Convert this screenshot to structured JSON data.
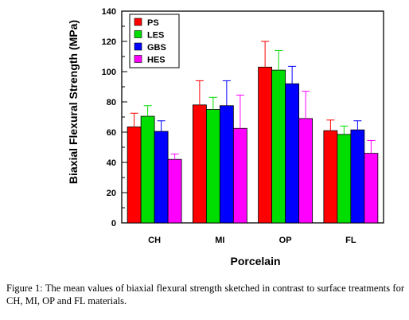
{
  "chart_data": {
    "type": "bar",
    "ylabel": "Biaxial Flexural Strength (MPa)",
    "xlabel": "Porcelain",
    "ylim": [
      0,
      140
    ],
    "yticks": [
      0,
      20,
      40,
      60,
      80,
      100,
      120,
      140
    ],
    "categories": [
      "CH",
      "MI",
      "OP",
      "FL"
    ],
    "legend_position": "top-left",
    "grid": false,
    "series": [
      {
        "name": "PS",
        "color": "#ff0000",
        "values": [
          63.5,
          78,
          103,
          61
        ],
        "errors": [
          9,
          16,
          17,
          7
        ]
      },
      {
        "name": "LES",
        "color": "#00dd00",
        "values": [
          70.5,
          75,
          101,
          58.5
        ],
        "errors": [
          7,
          8,
          13,
          5.5
        ]
      },
      {
        "name": "GBS",
        "color": "#0000ff",
        "values": [
          60.5,
          77.5,
          92,
          61.5
        ],
        "errors": [
          7,
          16.5,
          11.5,
          6
        ]
      },
      {
        "name": "HES",
        "color": "#ff00ff",
        "values": [
          42,
          62.5,
          69,
          46
        ],
        "errors": [
          3.5,
          22,
          18,
          8.5
        ]
      }
    ]
  },
  "caption": "Figure 1:  The mean values of biaxial flexural strength sketched in contrast to surface treatments for CH, MI, OP and FL materials."
}
